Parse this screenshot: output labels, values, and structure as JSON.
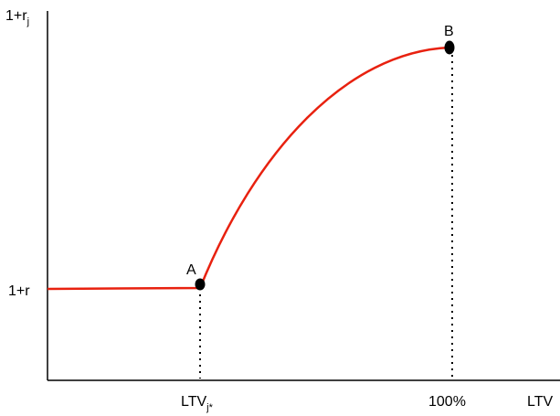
{
  "chart_data": {
    "type": "line",
    "title": "",
    "xlabel": "LTV",
    "ylabel": "1+r",
    "ylabel_subscript": "j",
    "x_ticks": [
      {
        "label": "LTV",
        "subscript": "j*"
      },
      {
        "label": "100%",
        "subscript": ""
      }
    ],
    "y_ticks": [
      {
        "label": "1+r",
        "subscript": ""
      }
    ],
    "points": [
      {
        "label": "A",
        "x_tick": 0,
        "y_tick": 0
      },
      {
        "label": "B",
        "x_tick": 1,
        "level": 2.63
      }
    ],
    "series": [
      {
        "color": "#e8210f",
        "shape": "flat to A, then concave increasing to B",
        "x": [
          0,
          0.375,
          1
        ],
        "y": [
          1,
          1,
          2.63
        ]
      }
    ],
    "grid": false,
    "legend": "none",
    "dotted_guides": true
  }
}
